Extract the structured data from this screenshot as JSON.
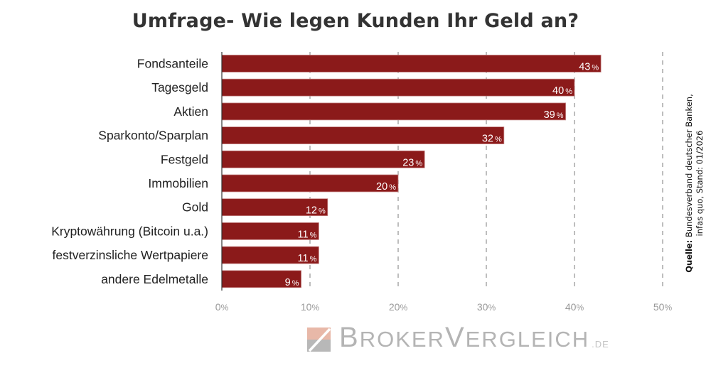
{
  "chart_data": {
    "type": "bar",
    "orientation": "horizontal",
    "title": "Umfrage- Wie legen Kunden Ihr Geld an?",
    "xlabel": "",
    "ylabel": "",
    "categories": [
      "Fondsanteile",
      "Tagesgeld",
      "Aktien",
      "Sparkonto/Sparplan",
      "Festgeld",
      "Immobilien",
      "Gold",
      "Kryptowährung (Bitcoin u.a.)",
      "festverzinsliche Wertpapiere",
      "andere Edelmetalle"
    ],
    "values": [
      43,
      40,
      39,
      32,
      23,
      20,
      12,
      11,
      11,
      9
    ],
    "value_suffix": "%",
    "xlim": [
      0,
      50
    ],
    "x_ticks": [
      0,
      10,
      20,
      30,
      40,
      50
    ],
    "x_tick_labels": [
      "0%",
      "10%",
      "20%",
      "30%",
      "40%",
      "50%"
    ],
    "grid": "vertical dashed",
    "legend": "none",
    "bar_color": "#8b1a1a"
  },
  "source": {
    "label": "Quelle:",
    "line1": "Bundesverband deutscher Banken,",
    "line2": "infas quo, Stand: 01/2026"
  },
  "logo": {
    "part1_initial": "B",
    "part1_rest": "ROKER",
    "part2_initial": "V",
    "part2_rest": "ERGLEICH",
    "tld": ".DE",
    "mark_color_top": "#e8b8a8",
    "mark_color_bottom": "#b8b8b8"
  }
}
